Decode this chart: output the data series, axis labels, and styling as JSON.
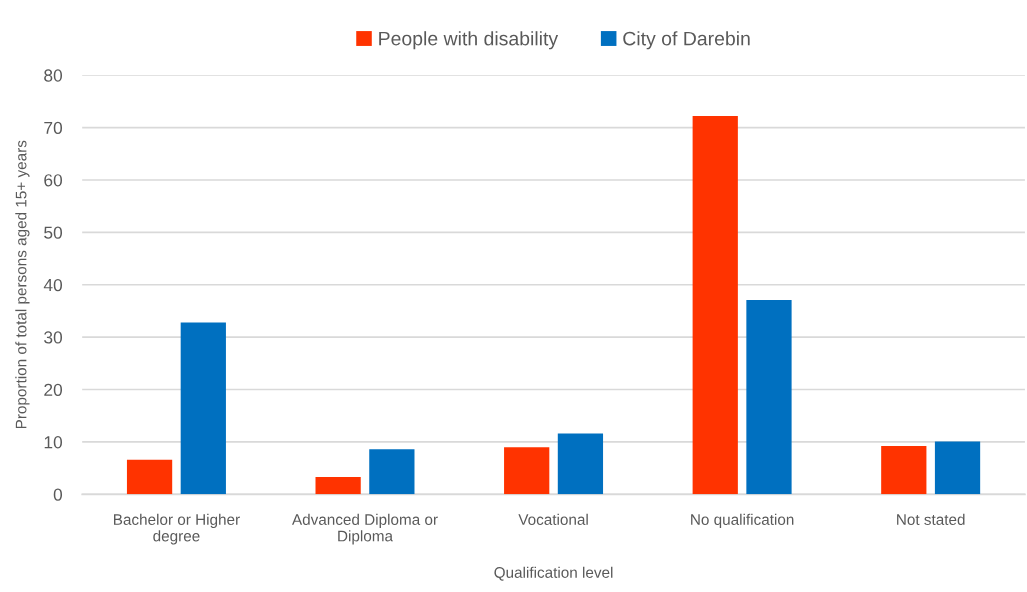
{
  "chart_data": {
    "type": "bar",
    "xlabel": "Qualification level",
    "ylabel": "Proportion of total persons aged 15+ years",
    "categories": [
      "Bachelor or Higher\ndegree",
      "Advanced Diploma or\nDiploma",
      "Vocational",
      "No qualification",
      "Not stated"
    ],
    "series": [
      {
        "name": "People with disability",
        "color": "#ff3300",
        "values": [
          6.6,
          3.3,
          9.0,
          72.2,
          9.2
        ]
      },
      {
        "name": "City of Darebin",
        "color": "#0070c0",
        "values": [
          32.8,
          8.6,
          11.6,
          37.1,
          10.1
        ]
      }
    ],
    "ylim": [
      0,
      80
    ],
    "yticks": [
      0,
      10,
      20,
      30,
      40,
      50,
      60,
      70,
      80
    ],
    "grid": "y",
    "legend": "top"
  }
}
